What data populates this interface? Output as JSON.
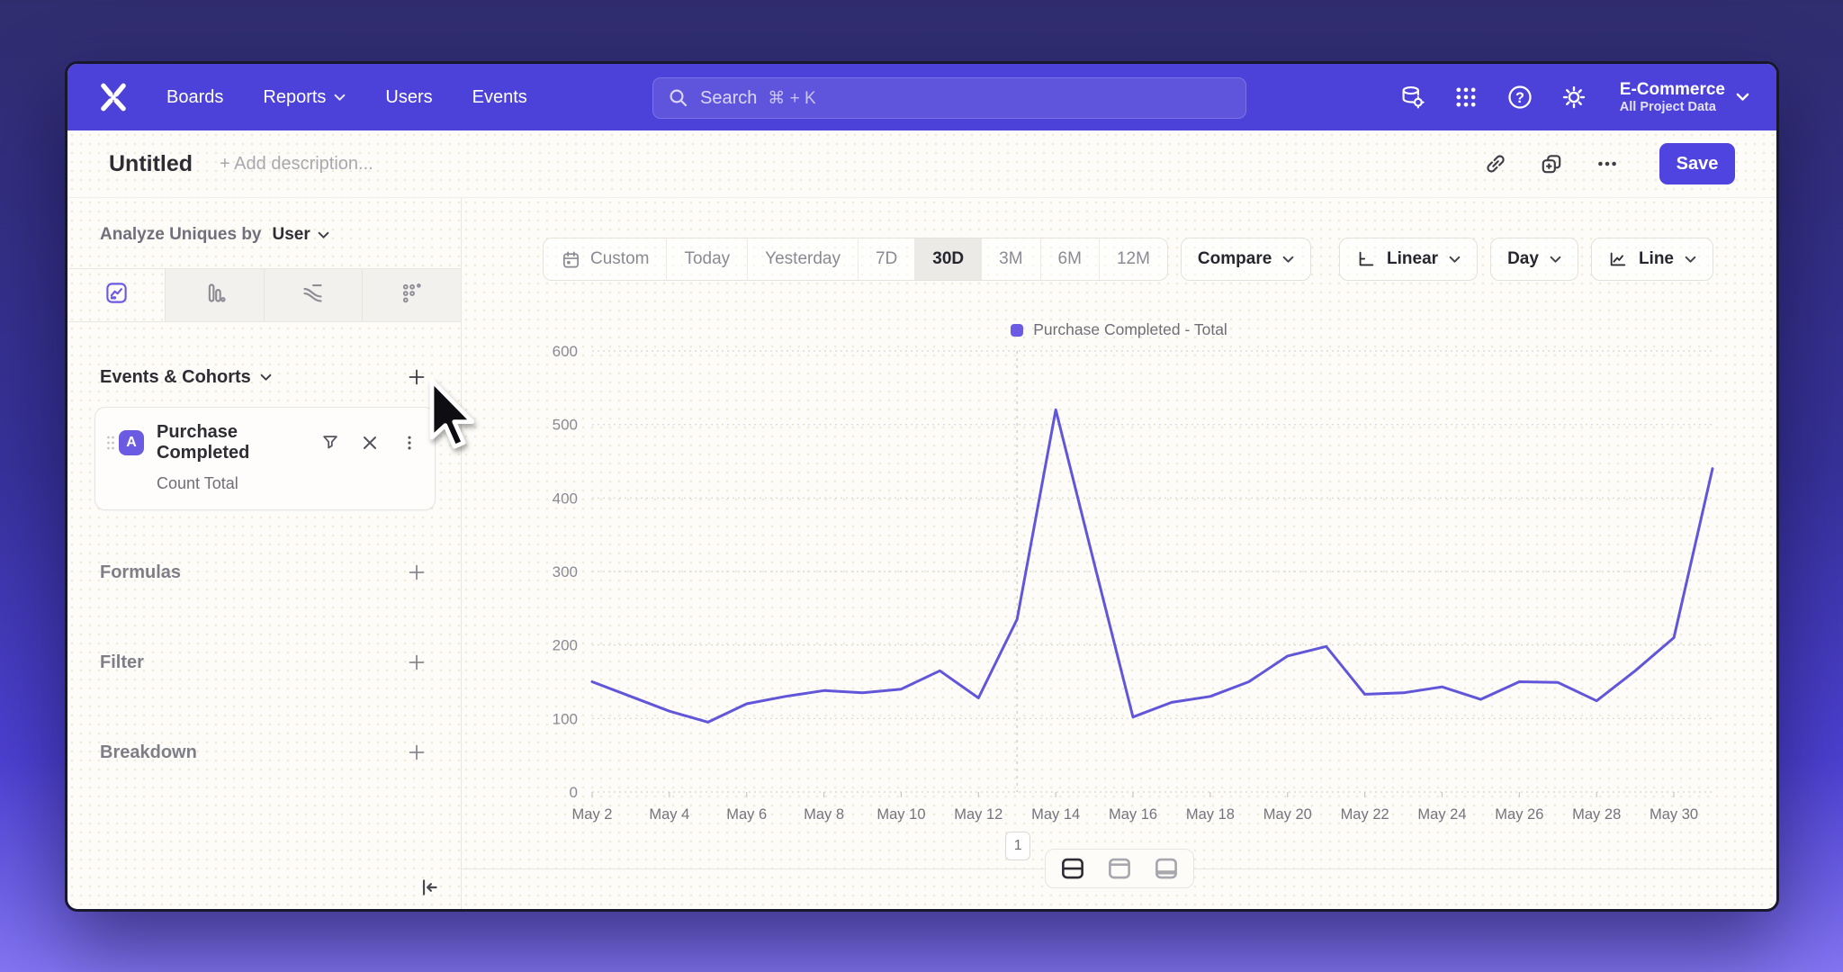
{
  "topnav": {
    "items": [
      {
        "label": "Boards",
        "has_dropdown": false
      },
      {
        "label": "Reports",
        "has_dropdown": true
      },
      {
        "label": "Users",
        "has_dropdown": false
      },
      {
        "label": "Events",
        "has_dropdown": false
      }
    ],
    "search": {
      "placeholder": "Search",
      "shortcut": "⌘ + K"
    },
    "right_icons": [
      "data-management-icon",
      "apps-grid-icon",
      "help-icon",
      "settings-gear-icon"
    ],
    "project": {
      "name": "E-Commerce",
      "scope": "All Project Data"
    }
  },
  "report_header": {
    "title": "Untitled",
    "description_placeholder": "+ Add description...",
    "action_icons": [
      "copy-link-icon",
      "duplicate-icon",
      "more-options-icon"
    ],
    "save_label": "Save"
  },
  "sidebar": {
    "analyze": {
      "label": "Analyze Uniques by",
      "value": "User"
    },
    "tabs": [
      {
        "name": "insights-line-tab",
        "selected": true
      },
      {
        "name": "bar-chart-tab",
        "selected": false
      },
      {
        "name": "flows-tab",
        "selected": false
      },
      {
        "name": "retention-tab",
        "selected": false
      }
    ],
    "events_header": {
      "label": "Events & Cohorts"
    },
    "event_card": {
      "badge": "A",
      "name": "Purchase Completed",
      "metric": "Count Total"
    },
    "sections": [
      {
        "label": "Formulas"
      },
      {
        "label": "Filter"
      },
      {
        "label": "Breakdown"
      }
    ]
  },
  "chart_toolbar": {
    "date_ranges": [
      "Custom",
      "Today",
      "Yesterday",
      "7D",
      "30D",
      "3M",
      "6M",
      "12M"
    ],
    "selected_range": "30D",
    "compare_label": "Compare",
    "scale_label": "Linear",
    "interval_label": "Day",
    "chart_type_label": "Line"
  },
  "chart_data": {
    "type": "line",
    "legend": [
      {
        "label": "Purchase Completed - Total",
        "color": "#6a5be2"
      }
    ],
    "legend_position": "top-center",
    "x": [
      "May 2",
      "May 3",
      "May 4",
      "May 5",
      "May 6",
      "May 7",
      "May 8",
      "May 9",
      "May 10",
      "May 11",
      "May 12",
      "May 13",
      "May 14",
      "May 15",
      "May 16",
      "May 17",
      "May 18",
      "May 19",
      "May 20",
      "May 21",
      "May 22",
      "May 23",
      "May 24",
      "May 25",
      "May 26",
      "May 27",
      "May 28",
      "May 29",
      "May 30",
      "May 31"
    ],
    "series": [
      {
        "name": "Purchase Completed - Total",
        "values": [
          150,
          130,
          110,
          95,
          120,
          130,
          138,
          135,
          140,
          165,
          128,
          235,
          520,
          310,
          102,
          122,
          130,
          150,
          185,
          198,
          133,
          135,
          143,
          126,
          150,
          149,
          124,
          165,
          210,
          440
        ]
      }
    ],
    "yticks": [
      0,
      100,
      200,
      300,
      400,
      500,
      600
    ],
    "ylim": [
      0,
      600
    ],
    "xtick_every": 2,
    "grid": "horizontal-dotted",
    "line_color": "#6156d9",
    "annotation": {
      "label": "1",
      "x_label": "May 13",
      "x_index": 11
    }
  },
  "footer_toolbar": {
    "layout_options": [
      "layout-split-horizontal-icon",
      "layout-header-top-icon",
      "layout-footer-bottom-icon"
    ],
    "selected_index": 0
  },
  "colors": {
    "nav": "#4c42d9",
    "accent": "#4f44e0",
    "line": "#6156d9",
    "badge": "#6a5be2"
  }
}
